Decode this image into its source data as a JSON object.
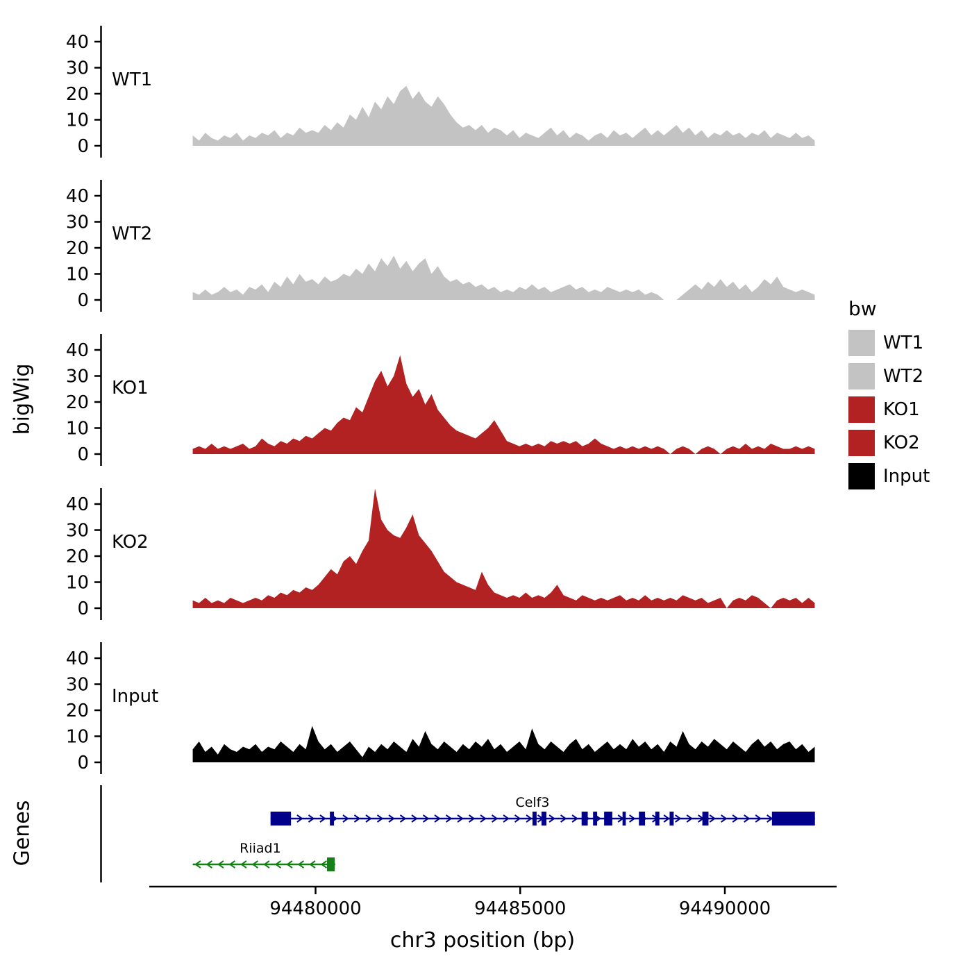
{
  "figure": {
    "ylabel": "bigWig",
    "genes_label": "Genes",
    "xlabel": "chr3 position (bp)"
  },
  "legend": {
    "title": "bw",
    "entries": [
      {
        "label": "WT1",
        "color": "#c3c3c3"
      },
      {
        "label": "WT2",
        "color": "#c3c3c3"
      },
      {
        "label": "KO1",
        "color": "#b22222"
      },
      {
        "label": "KO2",
        "color": "#b22222"
      },
      {
        "label": "Input",
        "color": "#000000"
      }
    ]
  },
  "chart_data": {
    "type": "area",
    "title": "",
    "xlabel": "chr3 position (bp)",
    "ylabel": "bigWig",
    "x_axis": {
      "ticks": [
        94480000,
        94485000,
        94490000
      ],
      "tick_labels": [
        "94480000",
        "94485000",
        "94490000"
      ],
      "domain": [
        94474750,
        94492900
      ]
    },
    "y_axis": {
      "ticks": [
        0,
        10,
        20,
        30,
        40
      ],
      "ylim": [
        0,
        48
      ]
    },
    "x_start": 94477000,
    "x_step": 153.5,
    "tracks": [
      {
        "name": "WT1",
        "color": "#c3c3c3",
        "values": [
          4,
          2,
          5,
          3,
          2,
          4,
          3,
          5,
          2,
          4,
          3,
          5,
          4,
          6,
          3,
          5,
          4,
          7,
          5,
          6,
          5,
          8,
          6,
          9,
          7,
          12,
          10,
          15,
          11,
          17,
          14,
          19,
          16,
          21,
          23,
          18,
          21,
          17,
          15,
          19,
          16,
          12,
          9,
          7,
          8,
          6,
          8,
          5,
          7,
          6,
          4,
          6,
          3,
          5,
          4,
          3,
          5,
          7,
          4,
          6,
          3,
          5,
          4,
          2,
          4,
          5,
          3,
          6,
          4,
          5,
          3,
          5,
          7,
          4,
          6,
          4,
          6,
          8,
          5,
          7,
          4,
          6,
          3,
          5,
          4,
          6,
          4,
          5,
          3,
          5,
          4,
          6,
          3,
          5,
          4,
          3,
          5,
          3,
          4,
          2
        ]
      },
      {
        "name": "WT2",
        "color": "#c3c3c3",
        "values": [
          3,
          2,
          4,
          2,
          3,
          5,
          3,
          4,
          2,
          5,
          4,
          6,
          3,
          7,
          5,
          9,
          6,
          10,
          7,
          8,
          6,
          9,
          7,
          8,
          10,
          9,
          12,
          10,
          14,
          11,
          16,
          13,
          17,
          12,
          15,
          11,
          14,
          16,
          10,
          13,
          9,
          7,
          8,
          6,
          7,
          5,
          6,
          4,
          5,
          3,
          4,
          3,
          5,
          4,
          6,
          4,
          5,
          3,
          4,
          5,
          6,
          4,
          5,
          3,
          4,
          3,
          5,
          4,
          3,
          4,
          3,
          4,
          2,
          3,
          2,
          0,
          0,
          0,
          2,
          4,
          6,
          4,
          7,
          5,
          8,
          5,
          7,
          4,
          6,
          3,
          5,
          8,
          6,
          9,
          5,
          4,
          3,
          4,
          3,
          2
        ]
      },
      {
        "name": "KO1",
        "color": "#b22222",
        "values": [
          2,
          3,
          2,
          4,
          2,
          3,
          2,
          3,
          4,
          2,
          3,
          6,
          4,
          3,
          5,
          4,
          6,
          5,
          7,
          6,
          8,
          10,
          9,
          12,
          14,
          13,
          18,
          16,
          22,
          28,
          32,
          26,
          30,
          38,
          27,
          22,
          25,
          19,
          23,
          17,
          14,
          11,
          9,
          8,
          7,
          6,
          8,
          10,
          13,
          9,
          5,
          4,
          3,
          4,
          3,
          4,
          3,
          5,
          4,
          5,
          4,
          5,
          3,
          4,
          6,
          4,
          3,
          2,
          3,
          2,
          3,
          2,
          3,
          2,
          3,
          2,
          0,
          2,
          3,
          2,
          0,
          2,
          3,
          2,
          0,
          2,
          3,
          2,
          4,
          2,
          3,
          2,
          4,
          3,
          2,
          2,
          3,
          2,
          3,
          2
        ]
      },
      {
        "name": "KO2",
        "color": "#b22222",
        "values": [
          3,
          2,
          4,
          2,
          3,
          2,
          4,
          3,
          2,
          3,
          4,
          3,
          5,
          4,
          6,
          5,
          7,
          6,
          8,
          7,
          9,
          12,
          15,
          13,
          18,
          20,
          17,
          22,
          26,
          46,
          34,
          30,
          28,
          27,
          31,
          36,
          28,
          25,
          22,
          18,
          14,
          12,
          10,
          9,
          8,
          7,
          14,
          9,
          6,
          5,
          4,
          5,
          4,
          6,
          4,
          5,
          4,
          6,
          9,
          5,
          4,
          3,
          5,
          4,
          3,
          4,
          3,
          4,
          5,
          3,
          4,
          3,
          5,
          3,
          4,
          3,
          4,
          3,
          5,
          4,
          3,
          4,
          2,
          3,
          4,
          0,
          3,
          4,
          3,
          5,
          4,
          2,
          0,
          3,
          4,
          3,
          4,
          2,
          4,
          2
        ]
      },
      {
        "name": "Input",
        "color": "#000000",
        "values": [
          5,
          8,
          4,
          6,
          3,
          7,
          5,
          4,
          6,
          5,
          7,
          4,
          6,
          5,
          8,
          6,
          4,
          7,
          5,
          14,
          8,
          5,
          7,
          4,
          6,
          8,
          5,
          2,
          6,
          4,
          7,
          5,
          8,
          6,
          4,
          9,
          6,
          12,
          7,
          5,
          8,
          6,
          4,
          7,
          5,
          8,
          6,
          9,
          5,
          7,
          4,
          6,
          8,
          5,
          13,
          7,
          5,
          8,
          6,
          4,
          7,
          9,
          5,
          7,
          4,
          6,
          8,
          5,
          7,
          5,
          9,
          6,
          8,
          5,
          7,
          4,
          8,
          6,
          12,
          7,
          5,
          8,
          6,
          9,
          7,
          5,
          8,
          6,
          4,
          7,
          9,
          6,
          8,
          5,
          7,
          8,
          5,
          7,
          4,
          6
        ]
      }
    ],
    "genes": [
      {
        "name": "Celf3",
        "color": "#00008b",
        "strand": "+",
        "start": 94478900,
        "end": 94492200,
        "label_x": 94485300,
        "exons": [
          [
            94478900,
            94479400
          ],
          [
            94480350,
            94480450
          ],
          [
            94485300,
            94485400
          ],
          [
            94485520,
            94485640
          ],
          [
            94486500,
            94486650
          ],
          [
            94486780,
            94486880
          ],
          [
            94487050,
            94487250
          ],
          [
            94487500,
            94487580
          ],
          [
            94487900,
            94488050
          ],
          [
            94488300,
            94488400
          ],
          [
            94488650,
            94488750
          ],
          [
            94489450,
            94489600
          ],
          [
            94491150,
            94492200
          ]
        ]
      },
      {
        "name": "Riiad1",
        "color": "#158015",
        "strand": "-",
        "start": 94477000,
        "end": 94480480,
        "label_x": 94478650,
        "exons": [
          [
            94480280,
            94480470
          ]
        ]
      }
    ]
  }
}
